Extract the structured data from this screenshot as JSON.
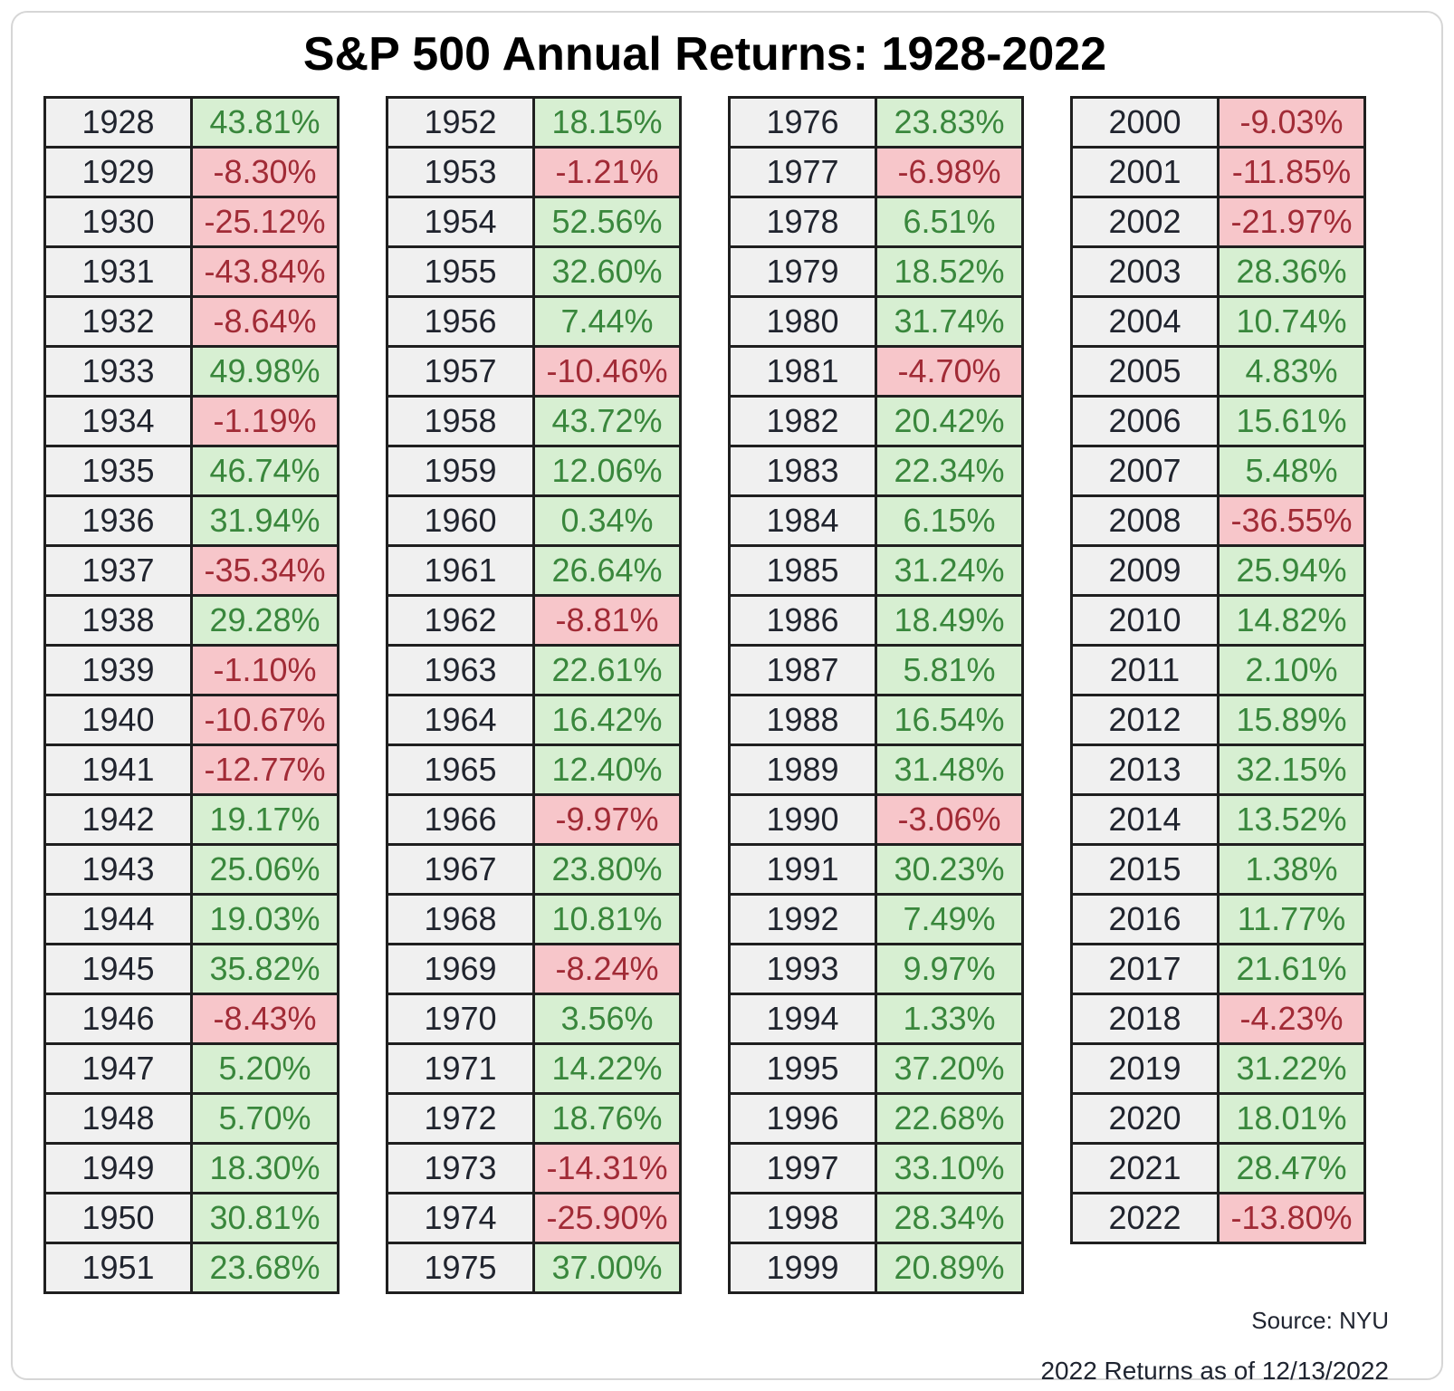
{
  "title": "S&P 500 Annual Returns: 1928-2022",
  "footer": {
    "source": "Source: NYU",
    "note": "2022 Returns as of 12/13/2022"
  },
  "colors": {
    "positive_bg": "#d7efd2",
    "positive_text": "#39873c",
    "negative_bg": "#f7c6ca",
    "negative_text": "#a12b36",
    "year_bg": "#f0f0f0",
    "year_text": "#20242e",
    "cell_border": "#1f1f1f",
    "frame_border": "#d6d6d6"
  },
  "chart_data": {
    "type": "table",
    "title": "S&P 500 Annual Returns: 1928-2022",
    "value_format": "percent",
    "layout": "4 side-by-side two-column tables (Year | Return), positive returns shaded green, negative shaded red",
    "groups": [
      {
        "rows": [
          {
            "year": 1928,
            "return_pct": 43.81
          },
          {
            "year": 1929,
            "return_pct": -8.3
          },
          {
            "year": 1930,
            "return_pct": -25.12
          },
          {
            "year": 1931,
            "return_pct": -43.84
          },
          {
            "year": 1932,
            "return_pct": -8.64
          },
          {
            "year": 1933,
            "return_pct": 49.98
          },
          {
            "year": 1934,
            "return_pct": -1.19
          },
          {
            "year": 1935,
            "return_pct": 46.74
          },
          {
            "year": 1936,
            "return_pct": 31.94
          },
          {
            "year": 1937,
            "return_pct": -35.34
          },
          {
            "year": 1938,
            "return_pct": 29.28
          },
          {
            "year": 1939,
            "return_pct": -1.1
          },
          {
            "year": 1940,
            "return_pct": -10.67
          },
          {
            "year": 1941,
            "return_pct": -12.77
          },
          {
            "year": 1942,
            "return_pct": 19.17
          },
          {
            "year": 1943,
            "return_pct": 25.06
          },
          {
            "year": 1944,
            "return_pct": 19.03
          },
          {
            "year": 1945,
            "return_pct": 35.82
          },
          {
            "year": 1946,
            "return_pct": -8.43
          },
          {
            "year": 1947,
            "return_pct": 5.2
          },
          {
            "year": 1948,
            "return_pct": 5.7
          },
          {
            "year": 1949,
            "return_pct": 18.3
          },
          {
            "year": 1950,
            "return_pct": 30.81
          },
          {
            "year": 1951,
            "return_pct": 23.68
          }
        ]
      },
      {
        "rows": [
          {
            "year": 1952,
            "return_pct": 18.15
          },
          {
            "year": 1953,
            "return_pct": -1.21
          },
          {
            "year": 1954,
            "return_pct": 52.56
          },
          {
            "year": 1955,
            "return_pct": 32.6
          },
          {
            "year": 1956,
            "return_pct": 7.44
          },
          {
            "year": 1957,
            "return_pct": -10.46
          },
          {
            "year": 1958,
            "return_pct": 43.72
          },
          {
            "year": 1959,
            "return_pct": 12.06
          },
          {
            "year": 1960,
            "return_pct": 0.34
          },
          {
            "year": 1961,
            "return_pct": 26.64
          },
          {
            "year": 1962,
            "return_pct": -8.81
          },
          {
            "year": 1963,
            "return_pct": 22.61
          },
          {
            "year": 1964,
            "return_pct": 16.42
          },
          {
            "year": 1965,
            "return_pct": 12.4
          },
          {
            "year": 1966,
            "return_pct": -9.97
          },
          {
            "year": 1967,
            "return_pct": 23.8
          },
          {
            "year": 1968,
            "return_pct": 10.81
          },
          {
            "year": 1969,
            "return_pct": -8.24
          },
          {
            "year": 1970,
            "return_pct": 3.56
          },
          {
            "year": 1971,
            "return_pct": 14.22
          },
          {
            "year": 1972,
            "return_pct": 18.76
          },
          {
            "year": 1973,
            "return_pct": -14.31
          },
          {
            "year": 1974,
            "return_pct": -25.9
          },
          {
            "year": 1975,
            "return_pct": 37.0
          }
        ]
      },
      {
        "rows": [
          {
            "year": 1976,
            "return_pct": 23.83
          },
          {
            "year": 1977,
            "return_pct": -6.98
          },
          {
            "year": 1978,
            "return_pct": 6.51
          },
          {
            "year": 1979,
            "return_pct": 18.52
          },
          {
            "year": 1980,
            "return_pct": 31.74
          },
          {
            "year": 1981,
            "return_pct": -4.7
          },
          {
            "year": 1982,
            "return_pct": 20.42
          },
          {
            "year": 1983,
            "return_pct": 22.34
          },
          {
            "year": 1984,
            "return_pct": 6.15
          },
          {
            "year": 1985,
            "return_pct": 31.24
          },
          {
            "year": 1986,
            "return_pct": 18.49
          },
          {
            "year": 1987,
            "return_pct": 5.81
          },
          {
            "year": 1988,
            "return_pct": 16.54
          },
          {
            "year": 1989,
            "return_pct": 31.48
          },
          {
            "year": 1990,
            "return_pct": -3.06
          },
          {
            "year": 1991,
            "return_pct": 30.23
          },
          {
            "year": 1992,
            "return_pct": 7.49
          },
          {
            "year": 1993,
            "return_pct": 9.97
          },
          {
            "year": 1994,
            "return_pct": 1.33
          },
          {
            "year": 1995,
            "return_pct": 37.2
          },
          {
            "year": 1996,
            "return_pct": 22.68
          },
          {
            "year": 1997,
            "return_pct": 33.1
          },
          {
            "year": 1998,
            "return_pct": 28.34
          },
          {
            "year": 1999,
            "return_pct": 20.89
          }
        ]
      },
      {
        "rows": [
          {
            "year": 2000,
            "return_pct": -9.03
          },
          {
            "year": 2001,
            "return_pct": -11.85
          },
          {
            "year": 2002,
            "return_pct": -21.97
          },
          {
            "year": 2003,
            "return_pct": 28.36
          },
          {
            "year": 2004,
            "return_pct": 10.74
          },
          {
            "year": 2005,
            "return_pct": 4.83
          },
          {
            "year": 2006,
            "return_pct": 15.61
          },
          {
            "year": 2007,
            "return_pct": 5.48
          },
          {
            "year": 2008,
            "return_pct": -36.55
          },
          {
            "year": 2009,
            "return_pct": 25.94
          },
          {
            "year": 2010,
            "return_pct": 14.82
          },
          {
            "year": 2011,
            "return_pct": 2.1
          },
          {
            "year": 2012,
            "return_pct": 15.89
          },
          {
            "year": 2013,
            "return_pct": 32.15
          },
          {
            "year": 2014,
            "return_pct": 13.52
          },
          {
            "year": 2015,
            "return_pct": 1.38
          },
          {
            "year": 2016,
            "return_pct": 11.77
          },
          {
            "year": 2017,
            "return_pct": 21.61
          },
          {
            "year": 2018,
            "return_pct": -4.23
          },
          {
            "year": 2019,
            "return_pct": 31.22
          },
          {
            "year": 2020,
            "return_pct": 18.01
          },
          {
            "year": 2021,
            "return_pct": 28.47
          },
          {
            "year": 2022,
            "return_pct": -13.8
          }
        ]
      }
    ]
  }
}
